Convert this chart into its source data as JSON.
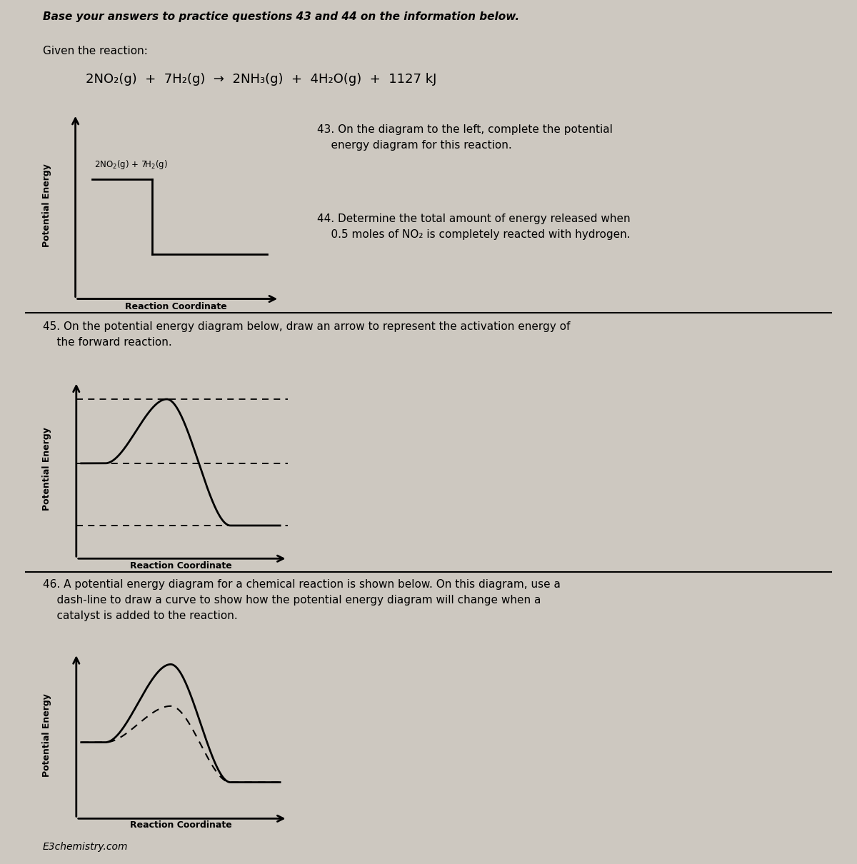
{
  "bg_color": "#cdc8c0",
  "text_color": "#000000",
  "title1": "Base your answers to practice questions 43 and 44 on the information below.",
  "given_text": "Given the reaction:",
  "reaction_line": "2NO₂(g)  +  7H₂(g)  →  2NH₃(g)  +  4H₂O(g)  +  1127 kJ",
  "q43a": "43. On the diagram to the left, complete the potential",
  "q43b": "    energy diagram for this reaction.",
  "q44a": "44. Determine the total amount of energy released when",
  "q44b": "    0.5 moles of NO₂ is completely reacted with hydrogen.",
  "q45a": "45. On the potential energy diagram below, draw an arrow to represent the activation energy of",
  "q45b": "    the forward reaction.",
  "q46a": "46. A potential energy diagram for a chemical reaction is shown below. On this diagram, use a",
  "q46b": "    dash-line to draw a curve to show how the potential energy diagram will change when a",
  "q46c": "    catalyst is added to the reaction.",
  "footer": "E3chemistry.com",
  "ylabel": "Potential Energy",
  "xlabel": "Reaction Coordinate",
  "reactant_label": "2NO₂(g) + 7H₂(g)"
}
